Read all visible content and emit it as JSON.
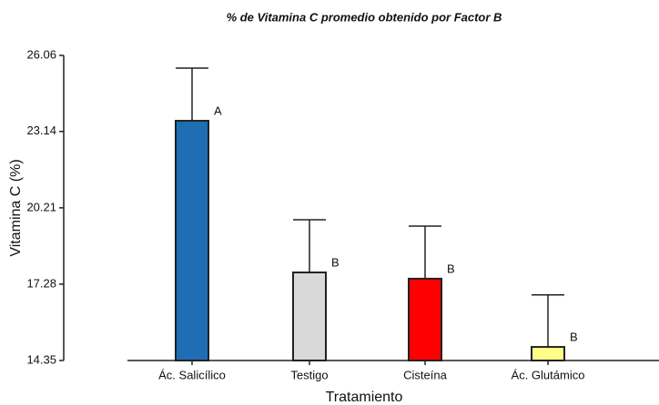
{
  "chart_data": {
    "type": "bar",
    "title": "% de Vitamina C promedio obtenido por Factor B",
    "x_label": "Tratamiento",
    "y_label": "Vitamina C (%)",
    "categories": [
      "Ác. Salicílico",
      "Testigo",
      "Cisteína",
      "Ác. Glutámico"
    ],
    "values": [
      23.55,
      17.73,
      17.49,
      14.87
    ],
    "errors": [
      2.02,
      2.02,
      2.02,
      2.0
    ],
    "letters": [
      "A",
      "B",
      "B",
      "B"
    ],
    "colors": [
      "#1f6db3",
      "#d9d9d9",
      "#ff0000",
      "#ffff88"
    ],
    "ylim": [
      14.35,
      26.06
    ],
    "yticks": [
      14.35,
      17.28,
      20.21,
      23.14,
      26.06
    ]
  }
}
